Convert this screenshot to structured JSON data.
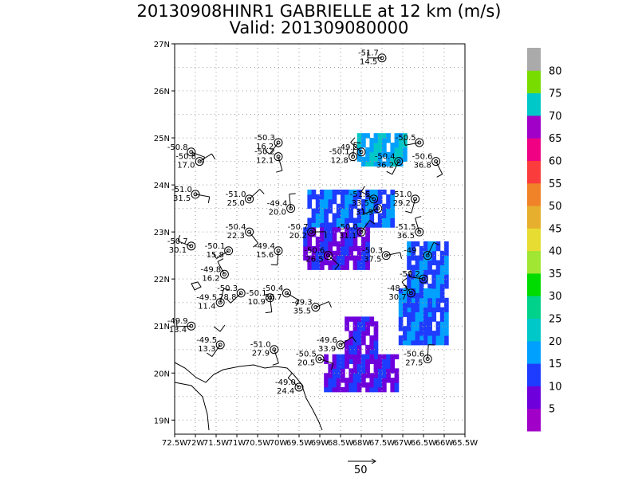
{
  "title": {
    "line1": "20130908HINR1 GABRIELLE at 12 km (m/s)",
    "line2": "Valid: 201309080000"
  },
  "map": {
    "lon_range": [
      -72.5,
      -65.5
    ],
    "lat_range": [
      18.7,
      27.0
    ],
    "lon_ticks": [
      "72.5W",
      "72W",
      "71.5W",
      "71W",
      "70.5W",
      "70W",
      "69.5W",
      "69W",
      "68.5W",
      "68W",
      "67.5W",
      "67W",
      "66.5W",
      "66W",
      "65.5W"
    ],
    "lat_ticks": [
      "19N",
      "20N",
      "21N",
      "22N",
      "23N",
      "24N",
      "25N",
      "26N",
      "27N"
    ],
    "grid": true
  },
  "colorbar": {
    "labels": [
      "5",
      "10",
      "15",
      "20",
      "25",
      "30",
      "35",
      "40",
      "45",
      "50",
      "55",
      "60",
      "65",
      "70",
      "75",
      "80"
    ],
    "colors": [
      "#a000c8",
      "#6e00dc",
      "#1e3cff",
      "#00a0ff",
      "#00c8c8",
      "#00d28c",
      "#00dc00",
      "#a0e632",
      "#e6dc32",
      "#e6af2d",
      "#f08228",
      "#fa3c3c",
      "#f00082",
      "#a000c8",
      "#00c8c8",
      "#78dc00",
      "#aaaaaa"
    ]
  },
  "stations": [
    {
      "lon": -67.5,
      "lat": 26.7,
      "t": "-51.7",
      "v": "14.5"
    },
    {
      "lon": -70.0,
      "lat": 24.9,
      "t": "-50.3",
      "v": "16.2"
    },
    {
      "lon": -70.0,
      "lat": 24.6,
      "t": "-50.2",
      "v": "12.1"
    },
    {
      "lon": -72.1,
      "lat": 24.7,
      "t": "-50.8",
      "v": ""
    },
    {
      "lon": -71.9,
      "lat": 24.5,
      "t": "-50.8",
      "v": "17.0"
    },
    {
      "lon": -68.2,
      "lat": 24.6,
      "t": "-50.1",
      "v": "12.8"
    },
    {
      "lon": -68.0,
      "lat": 24.7,
      "t": "-49.2",
      "v": ""
    },
    {
      "lon": -66.6,
      "lat": 24.9,
      "t": "-50.5",
      "v": ""
    },
    {
      "lon": -67.1,
      "lat": 24.5,
      "t": "-50.4",
      "v": "36.2"
    },
    {
      "lon": -66.2,
      "lat": 24.5,
      "t": "-50.6",
      "v": "36.8"
    },
    {
      "lon": -72.0,
      "lat": 23.8,
      "t": "-51.0",
      "v": "31.5"
    },
    {
      "lon": -70.7,
      "lat": 23.7,
      "t": "-51.0",
      "v": "25.0"
    },
    {
      "lon": -69.7,
      "lat": 23.5,
      "t": "-49.4",
      "v": "20.0"
    },
    {
      "lon": -67.7,
      "lat": 23.7,
      "t": "-51.5",
      "v": "33.5"
    },
    {
      "lon": -67.6,
      "lat": 23.5,
      "t": "",
      "v": "31.9"
    },
    {
      "lon": -66.7,
      "lat": 23.7,
      "t": "-51.0",
      "v": "29.2"
    },
    {
      "lon": -70.7,
      "lat": 23.0,
      "t": "-50.4",
      "v": "22.3"
    },
    {
      "lon": -69.2,
      "lat": 23.0,
      "t": "-50.7",
      "v": "20.2"
    },
    {
      "lon": -68.0,
      "lat": 23.0,
      "t": "-50.0",
      "v": "31.1"
    },
    {
      "lon": -66.6,
      "lat": 23.0,
      "t": "-51.5",
      "v": "36.5"
    },
    {
      "lon": -72.1,
      "lat": 22.7,
      "t": "-50.7",
      "v": "30.1"
    },
    {
      "lon": -71.2,
      "lat": 22.6,
      "t": "-50.1",
      "v": "15.8"
    },
    {
      "lon": -70.0,
      "lat": 22.6,
      "t": "-49.4",
      "v": "15.6"
    },
    {
      "lon": -68.8,
      "lat": 22.5,
      "t": "-50.6",
      "v": "26.5"
    },
    {
      "lon": -67.4,
      "lat": 22.5,
      "t": "-50.3",
      "v": "37.5"
    },
    {
      "lon": -66.4,
      "lat": 22.5,
      "t": "-49",
      "v": ""
    },
    {
      "lon": -71.3,
      "lat": 22.1,
      "t": "-49.8",
      "v": "16.2"
    },
    {
      "lon": -66.5,
      "lat": 22.0,
      "t": "-50.2",
      "v": ""
    },
    {
      "lon": -70.9,
      "lat": 21.7,
      "t": "-50.3",
      "v": "28.8"
    },
    {
      "lon": -70.2,
      "lat": 21.6,
      "t": "-50.1",
      "v": "10.9"
    },
    {
      "lon": -69.8,
      "lat": 21.7,
      "t": "-50.4",
      "v": "36.7"
    },
    {
      "lon": -69.1,
      "lat": 21.4,
      "t": "-49.3",
      "v": "35.5"
    },
    {
      "lon": -71.4,
      "lat": 21.5,
      "t": "-49.5",
      "v": "11.4"
    },
    {
      "lon": -66.8,
      "lat": 21.7,
      "t": "-48.3",
      "v": "30.7"
    },
    {
      "lon": -72.1,
      "lat": 21.0,
      "t": "-49.9",
      "v": "13.4"
    },
    {
      "lon": -71.4,
      "lat": 20.6,
      "t": "-49.5",
      "v": "13.3"
    },
    {
      "lon": -70.1,
      "lat": 20.5,
      "t": "-51.0",
      "v": "27.9"
    },
    {
      "lon": -69.0,
      "lat": 20.3,
      "t": "-50.5",
      "v": "20.5"
    },
    {
      "lon": -68.5,
      "lat": 20.6,
      "t": "-49.6",
      "v": "33.9"
    },
    {
      "lon": -66.4,
      "lat": 20.3,
      "t": "-50.6",
      "v": "27.5"
    },
    {
      "lon": -69.5,
      "lat": 19.7,
      "t": "-49.0",
      "v": "24.4"
    }
  ],
  "wind_regions": [
    {
      "lon": [
        -68.1,
        -67.0
      ],
      "lat": [
        24.4,
        25.1
      ],
      "level": 15
    },
    {
      "lon": [
        -69.3,
        -67.3
      ],
      "lat": [
        23.1,
        23.9
      ],
      "level": 10
    },
    {
      "lon": [
        -69.4,
        -67.9
      ],
      "lat": [
        22.2,
        23.1
      ],
      "level": 8
    },
    {
      "lon": [
        -66.9,
        -66.0
      ],
      "lat": [
        20.6,
        22.8
      ],
      "level": 10
    },
    {
      "lon": [
        -67.1,
        -66.4
      ],
      "lat": [
        20.6,
        21.8
      ],
      "level": 13
    },
    {
      "lon": [
        -68.4,
        -67.7
      ],
      "lat": [
        20.2,
        21.2
      ],
      "level": 8
    },
    {
      "lon": [
        -68.9,
        -67.2
      ],
      "lat": [
        19.6,
        20.4
      ],
      "level": 8
    }
  ],
  "reference_vector": {
    "label": "50"
  }
}
